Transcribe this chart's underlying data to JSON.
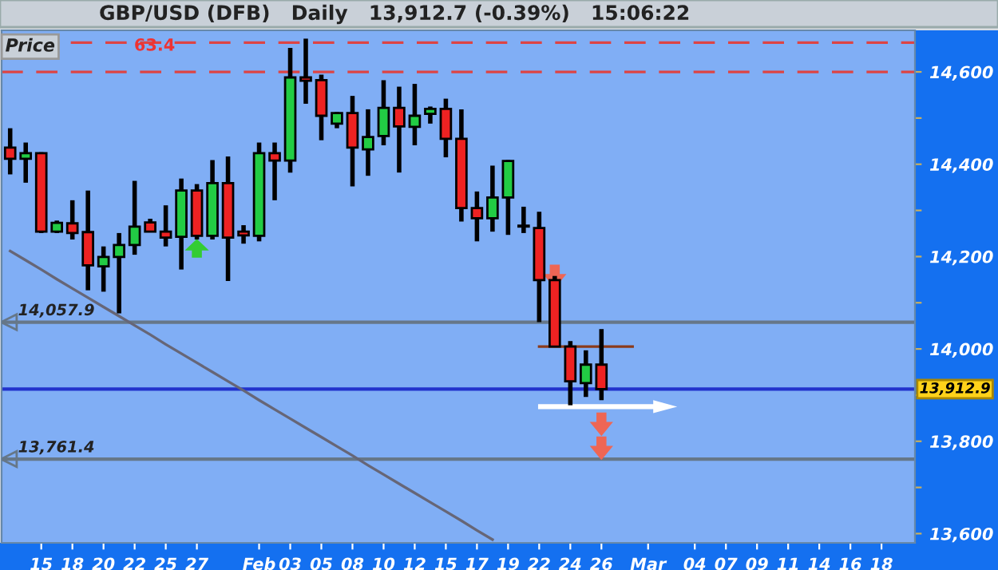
{
  "chart_data": {
    "type": "candlestick",
    "title": "GBP/USD (DFB)   Daily   13,912.7 (-0.39%)   15:06:22",
    "annotations": [
      "Price",
      "63.4"
    ],
    "categories": [
      null,
      null,
      "15",
      null,
      "18",
      null,
      "20",
      null,
      "22",
      null,
      "25",
      null,
      "27",
      null,
      null,
      null,
      "Feb",
      null,
      "03",
      null,
      "05",
      null,
      "08",
      null,
      "10",
      null,
      "12",
      null,
      "15",
      null,
      "17",
      null,
      "19",
      null,
      "22",
      null,
      "24",
      null,
      "26",
      null,
      null,
      "Mar",
      null,
      null,
      "04",
      null,
      "07",
      null,
      "09",
      null,
      "11",
      null,
      "14",
      null,
      "16",
      null,
      "18",
      null,
      null
    ],
    "ohlc": [
      [
        14436,
        14478,
        14378,
        14412
      ],
      [
        14412,
        14447,
        14360,
        14424
      ],
      [
        14424,
        14426,
        14251,
        14254
      ],
      [
        14254,
        14278,
        14251,
        14273
      ],
      [
        14272,
        14322,
        14237,
        14251
      ],
      [
        14253,
        14343,
        14127,
        14181
      ],
      [
        14179,
        14222,
        14124,
        14199
      ],
      [
        14199,
        14251,
        14077,
        14225
      ],
      [
        14225,
        14364,
        14204,
        14265
      ],
      [
        14274,
        14282,
        14254,
        14254
      ],
      [
        14254,
        14311,
        14222,
        14241
      ],
      [
        14243,
        14369,
        14172,
        14343
      ],
      [
        14343,
        14357,
        14237,
        14245
      ],
      [
        14245,
        14409,
        14237,
        14359
      ],
      [
        14359,
        14417,
        14147,
        14241
      ],
      [
        14254,
        14268,
        14228,
        14246
      ],
      [
        14245,
        14447,
        14233,
        14424
      ],
      [
        14424,
        14447,
        14322,
        14408
      ],
      [
        14408,
        14652,
        14382,
        14588
      ],
      [
        14588,
        14672,
        14531,
        14581
      ],
      [
        14582,
        14594,
        14452,
        14505
      ],
      [
        14488,
        14513,
        14478,
        14511
      ],
      [
        14511,
        14548,
        14352,
        14436
      ],
      [
        14432,
        14519,
        14375,
        14459
      ],
      [
        14461,
        14582,
        14441,
        14522
      ],
      [
        14522,
        14568,
        14382,
        14482
      ],
      [
        14481,
        14574,
        14441,
        14505
      ],
      [
        14509,
        14525,
        14488,
        14520
      ],
      [
        14520,
        14542,
        14415,
        14455
      ],
      [
        14455,
        14519,
        14276,
        14305
      ],
      [
        14305,
        14341,
        14233,
        14283
      ],
      [
        14283,
        14397,
        14254,
        14328
      ],
      [
        14328,
        14409,
        14247,
        14407
      ],
      [
        14265,
        14308,
        14251,
        14265
      ],
      [
        14262,
        14297,
        14058,
        14149
      ],
      [
        14149,
        14158,
        14005,
        14005
      ],
      [
        14005,
        14017,
        13878,
        13930
      ],
      [
        13926,
        13997,
        13896,
        13966
      ],
      [
        13966,
        14043,
        13889,
        13912.9
      ],
      null,
      null,
      null,
      null,
      null,
      null,
      null,
      null,
      null,
      null,
      null,
      null,
      null,
      null,
      null,
      null,
      null,
      null,
      null,
      null
    ],
    "colors": [
      "#ee2222",
      "#22cc44",
      "#ee2222",
      "#22cc44",
      "#ee2222",
      "#ee2222",
      "#22cc44",
      "#22cc44",
      "#22cc44",
      "#ee2222",
      "#ee2222",
      "#22cc44",
      "#ee2222",
      "#22cc44",
      "#ee2222",
      "#ee2222",
      "#22cc44",
      "#ee2222",
      "#22cc44",
      "#ee2222",
      "#ee2222",
      "#22cc44",
      "#ee2222",
      "#22cc44",
      "#22cc44",
      "#ee2222",
      "#22cc44",
      "#22cc44",
      "#ee2222",
      "#ee2222",
      "#ee2222",
      "#22cc44",
      "#22cc44",
      "#000000",
      "#ee2222",
      "#ee2222",
      "#ee2222",
      "#22cc44",
      "#ee2222",
      null,
      null,
      null,
      null,
      null,
      null,
      null,
      null,
      null,
      null,
      null,
      null,
      null,
      null,
      null,
      null,
      null,
      null,
      null,
      null
    ],
    "series": [
      {
        "type": "line",
        "color": "#666677",
        "values": [
          14212,
          14192,
          14172,
          14151,
          14131,
          14111,
          14091,
          14071,
          14051,
          14031,
          14010,
          13990,
          13970,
          13950,
          13930,
          13910,
          13889,
          13869,
          13849,
          13829,
          13809,
          13789,
          13769,
          13748,
          13728,
          13708,
          13688,
          13668,
          13648,
          13628,
          13607,
          13587,
          null,
          null,
          null,
          null,
          null,
          null,
          null,
          null,
          null,
          null,
          null,
          null,
          null,
          null,
          null,
          null,
          null,
          null,
          null,
          null,
          null,
          null,
          null,
          null,
          null,
          null,
          null
        ]
      },
      {
        "type": "line",
        "color": "#8b3a1a",
        "values": [
          null,
          null,
          null,
          null,
          null,
          null,
          null,
          null,
          null,
          null,
          null,
          null,
          null,
          null,
          null,
          null,
          null,
          null,
          null,
          null,
          null,
          null,
          null,
          null,
          null,
          null,
          null,
          null,
          null,
          null,
          null,
          null,
          null,
          null,
          14005,
          14005,
          14005,
          14005,
          14005,
          14005,
          14005,
          null,
          null,
          null,
          null,
          null,
          null,
          null,
          null,
          null,
          null,
          null,
          null,
          null,
          null,
          null,
          null,
          null,
          null
        ]
      }
    ],
    "ref_lines": [
      {
        "axis": "y",
        "value": 14663.4,
        "color": "#dd4444",
        "line_style": "dashed"
      },
      {
        "axis": "y",
        "value": 14600,
        "color": "#dd4444",
        "line_style": "dashed"
      },
      {
        "axis": "y",
        "value": 14057.9,
        "label": "14,057.9",
        "color": "#667788",
        "line_style": "solid"
      },
      {
        "axis": "y",
        "value": 13912.9,
        "label": "13,912.9",
        "color": "#2233cc",
        "line_style": "solid"
      },
      {
        "axis": "y",
        "value": 13761.4,
        "label": "13,761.4",
        "color": "#667788",
        "line_style": "solid"
      }
    ],
    "ylim": [
      13580,
      14690
    ],
    "yticks": [
      {
        "value": 13600,
        "label": "13,600"
      },
      {
        "value": 13700,
        "label": null
      },
      {
        "value": 13800,
        "label": "13,800"
      },
      {
        "value": 13900,
        "label": null
      },
      {
        "value": 14000,
        "label": "14,000"
      },
      {
        "value": 14100,
        "label": null
      },
      {
        "value": 14200,
        "label": "14,200"
      },
      {
        "value": 14300,
        "label": null
      },
      {
        "value": 14400,
        "label": "14,400"
      },
      {
        "value": 14500,
        "label": null
      },
      {
        "value": 14600,
        "label": "14,600"
      }
    ],
    "grid": false,
    "legend": false
  }
}
